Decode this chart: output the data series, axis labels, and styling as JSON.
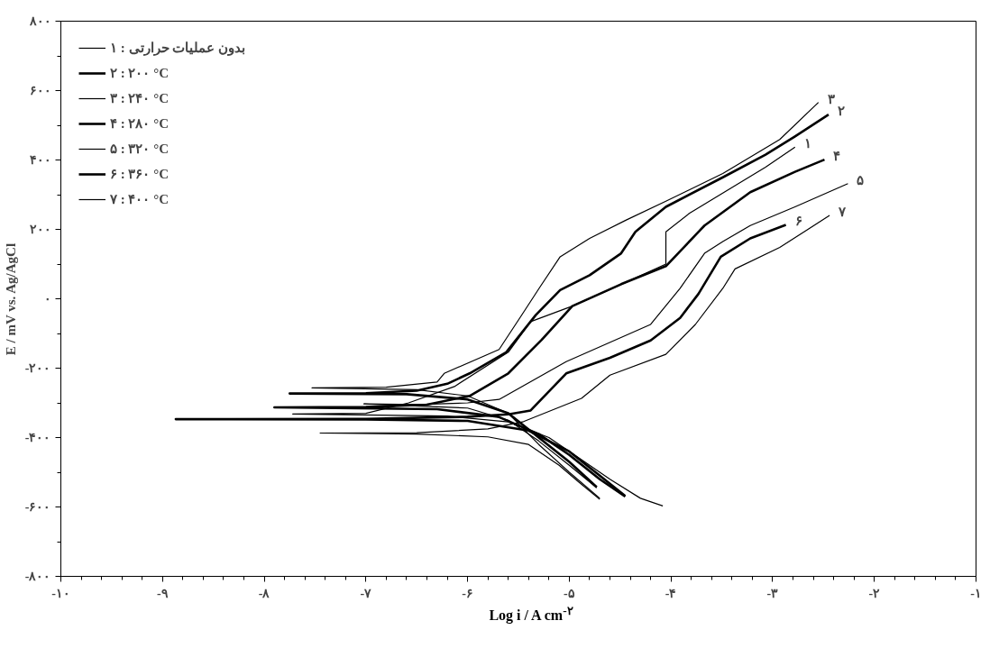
{
  "chart_data": {
    "type": "line",
    "xlabel": "Log i / A cm$^{-۲}$",
    "ylabel": "E / mV vs. Ag/AgCl",
    "xlim": [
      -10,
      -1
    ],
    "ylim": [
      -800,
      800
    ],
    "xticks": [
      {
        "value": -10,
        "label": "-۱۰"
      },
      {
        "value": -9,
        "label": "-۹"
      },
      {
        "value": -8,
        "label": "-۸"
      },
      {
        "value": -7,
        "label": "-۷"
      },
      {
        "value": -6,
        "label": "-۶"
      },
      {
        "value": -5,
        "label": "-۵"
      },
      {
        "value": -4,
        "label": "-۴"
      },
      {
        "value": -3,
        "label": "-۳"
      },
      {
        "value": -2,
        "label": "-۲"
      },
      {
        "value": -1,
        "label": "-۱"
      },
      {
        "value": -9.8,
        "label": null
      },
      {
        "value": -9.6,
        "label": null
      },
      {
        "value": -9.4,
        "label": null
      },
      {
        "value": -9.2,
        "label": null
      },
      {
        "value": -8.8,
        "label": null
      },
      {
        "value": -8.6,
        "label": null
      },
      {
        "value": -8.4,
        "label": null
      },
      {
        "value": -8.2,
        "label": null
      },
      {
        "value": -7.8,
        "label": null
      },
      {
        "value": -7.6,
        "label": null
      },
      {
        "value": -7.4,
        "label": null
      },
      {
        "value": -7.2,
        "label": null
      },
      {
        "value": -6.8,
        "label": null
      },
      {
        "value": -6.6,
        "label": null
      },
      {
        "value": -6.4,
        "label": null
      },
      {
        "value": -6.2,
        "label": null
      },
      {
        "value": -5.8,
        "label": null
      },
      {
        "value": -5.6,
        "label": null
      },
      {
        "value": -5.4,
        "label": null
      },
      {
        "value": -5.2,
        "label": null
      },
      {
        "value": -4.8,
        "label": null
      },
      {
        "value": -4.6,
        "label": null
      },
      {
        "value": -4.4,
        "label": null
      },
      {
        "value": -4.2,
        "label": null
      },
      {
        "value": -3.8,
        "label": null
      },
      {
        "value": -3.6,
        "label": null
      },
      {
        "value": -3.4,
        "label": null
      },
      {
        "value": -3.2,
        "label": null
      },
      {
        "value": -2.8,
        "label": null
      },
      {
        "value": -2.6,
        "label": null
      },
      {
        "value": -2.4,
        "label": null
      },
      {
        "value": -2.2,
        "label": null
      },
      {
        "value": -1.8,
        "label": null
      },
      {
        "value": -1.6,
        "label": null
      },
      {
        "value": -1.4,
        "label": null
      },
      {
        "value": -1.2,
        "label": null
      }
    ],
    "yticks": [
      {
        "value": -800,
        "label": "-۸۰۰"
      },
      {
        "value": -600,
        "label": "-۶۰۰"
      },
      {
        "value": -400,
        "label": "-۴۰۰"
      },
      {
        "value": -200,
        "label": "-۲۰۰"
      },
      {
        "value": 0,
        "label": "۰"
      },
      {
        "value": 200,
        "label": "۲۰۰"
      },
      {
        "value": 400,
        "label": "۴۰۰"
      },
      {
        "value": 600,
        "label": "۶۰۰"
      },
      {
        "value": 800,
        "label": "۸۰۰"
      },
      {
        "value": -700,
        "label": null
      },
      {
        "value": -500,
        "label": null
      },
      {
        "value": -300,
        "label": null
      },
      {
        "value": -100,
        "label": null
      },
      {
        "value": 100,
        "label": null
      },
      {
        "value": 300,
        "label": null
      },
      {
        "value": 500,
        "label": null
      },
      {
        "value": 700,
        "label": null
      }
    ],
    "legend": "top left",
    "line_style": "solid",
    "series": [
      {
        "name": "۱ : بدون عملیات حرارتی",
        "color": "#000000",
        "x": [
          -4.08,
          -4.3,
          -4.6,
          -4.9,
          -5.2,
          -5.6,
          -6.2,
          -7.72,
          -7.0,
          -6.58,
          -6.13,
          -5.6,
          -5.38,
          -4.97,
          -4.5,
          -4.05,
          -4.05,
          -3.82,
          -3.37,
          -3.07,
          -2.78
        ],
        "values": [
          -597,
          -575,
          -520,
          -460,
          -400,
          -355,
          -338,
          -332,
          -330,
          -300,
          -253,
          -154,
          -66,
          -21,
          40,
          100,
          193,
          246,
          326,
          379,
          437
        ]
      },
      {
        "name": "۲ : ۲۰۰ °C",
        "color": "#000000",
        "x": [
          -4.73,
          -5.0,
          -5.3,
          -5.6,
          -6.0,
          -6.6,
          -7.75,
          -7.0,
          -6.5,
          -6.2,
          -5.98,
          -5.62,
          -5.33,
          -5.09,
          -4.8,
          -4.49,
          -4.35,
          -4.05,
          -3.49,
          -3.07,
          -2.78,
          -2.45
        ],
        "values": [
          -543,
          -470,
          -400,
          -330,
          -290,
          -275,
          -273,
          -272,
          -265,
          -245,
          -215,
          -154,
          -47,
          25,
          68,
          131,
          193,
          265,
          350,
          415,
          468,
          531
        ]
      },
      {
        "name": "۳ : ۲۴۰ °C",
        "color": "#000000",
        "x": [
          -4.7,
          -5.0,
          -5.3,
          -5.6,
          -6.0,
          -6.5,
          -7.53,
          -6.8,
          -6.3,
          -6.23,
          -5.69,
          -5.45,
          -5.29,
          -5.09,
          -4.8,
          -4.44,
          -4.05,
          -3.49,
          -2.93,
          -2.55
        ],
        "values": [
          -575,
          -500,
          -420,
          -330,
          -280,
          -262,
          -257,
          -255,
          -240,
          -215,
          -146,
          -39,
          33,
          121,
          174,
          227,
          281,
          361,
          459,
          566
        ]
      },
      {
        "name": "۴ : ۲۸۰ °C",
        "color": "#000000",
        "x": [
          -4.45,
          -4.7,
          -5.0,
          -5.3,
          -5.7,
          -6.3,
          -7.9,
          -7.0,
          -6.4,
          -5.98,
          -5.6,
          -5.27,
          -4.97,
          -4.49,
          -4.05,
          -3.67,
          -3.22,
          -2.78,
          -2.49
        ],
        "values": [
          -570,
          -520,
          -450,
          -390,
          -340,
          -318,
          -313,
          -312,
          -305,
          -280,
          -215,
          -118,
          -21,
          42,
          94,
          211,
          307,
          366,
          401
        ]
      },
      {
        "name": "۵ : ۳۲۰ °C",
        "color": "#000000",
        "x": [
          -4.73,
          -5.0,
          -5.3,
          -5.6,
          -6.0,
          -7.02,
          -6.5,
          -6.0,
          -5.69,
          -5.03,
          -4.2,
          -3.91,
          -3.67,
          -3.49,
          -3.22,
          -2.78,
          -2.26
        ],
        "values": [
          -545,
          -480,
          -410,
          -350,
          -315,
          -303,
          -305,
          -300,
          -290,
          -181,
          -74,
          30,
          131,
          165,
          211,
          265,
          332
        ]
      },
      {
        "name": "۶ : ۳۶۰ °C",
        "color": "#000000",
        "x": [
          -4.45,
          -4.7,
          -5.0,
          -5.4,
          -6.0,
          -7.0,
          -8.87,
          -7.0,
          -6.0,
          -5.6,
          -5.38,
          -5.03,
          -4.6,
          -4.2,
          -3.91,
          -3.73,
          -3.51,
          -3.22,
          -2.87
        ],
        "values": [
          -568,
          -510,
          -440,
          -380,
          -352,
          -348,
          -347,
          -346,
          -340,
          -333,
          -322,
          -215,
          -170,
          -120,
          -55,
          14,
          121,
          174,
          213
        ]
      },
      {
        "name": "۷ : ۴۰۰ °C",
        "color": "#000000",
        "x": [
          -4.7,
          -4.9,
          -5.1,
          -5.4,
          -5.8,
          -6.5,
          -7.45,
          -6.5,
          -5.8,
          -5.45,
          -4.88,
          -4.6,
          -4.05,
          -3.76,
          -3.49,
          -3.37,
          -2.93,
          -2.44
        ],
        "values": [
          -578,
          -530,
          -480,
          -420,
          -398,
          -390,
          -387,
          -386,
          -375,
          -354,
          -287,
          -220,
          -160,
          -74,
          30,
          86,
          148,
          240
        ]
      }
    ],
    "annotations": [
      {
        "text": "۱",
        "x": -2.78,
        "y": 437
      },
      {
        "text": "۲",
        "x": -2.45,
        "y": 531
      },
      {
        "text": "۳",
        "x": -2.55,
        "y": 566
      },
      {
        "text": "۴",
        "x": -2.49,
        "y": 401
      },
      {
        "text": "۵",
        "x": -2.26,
        "y": 332
      },
      {
        "text": "۶",
        "x": -2.87,
        "y": 213
      },
      {
        "text": "۷",
        "x": -2.44,
        "y": 240
      }
    ]
  }
}
